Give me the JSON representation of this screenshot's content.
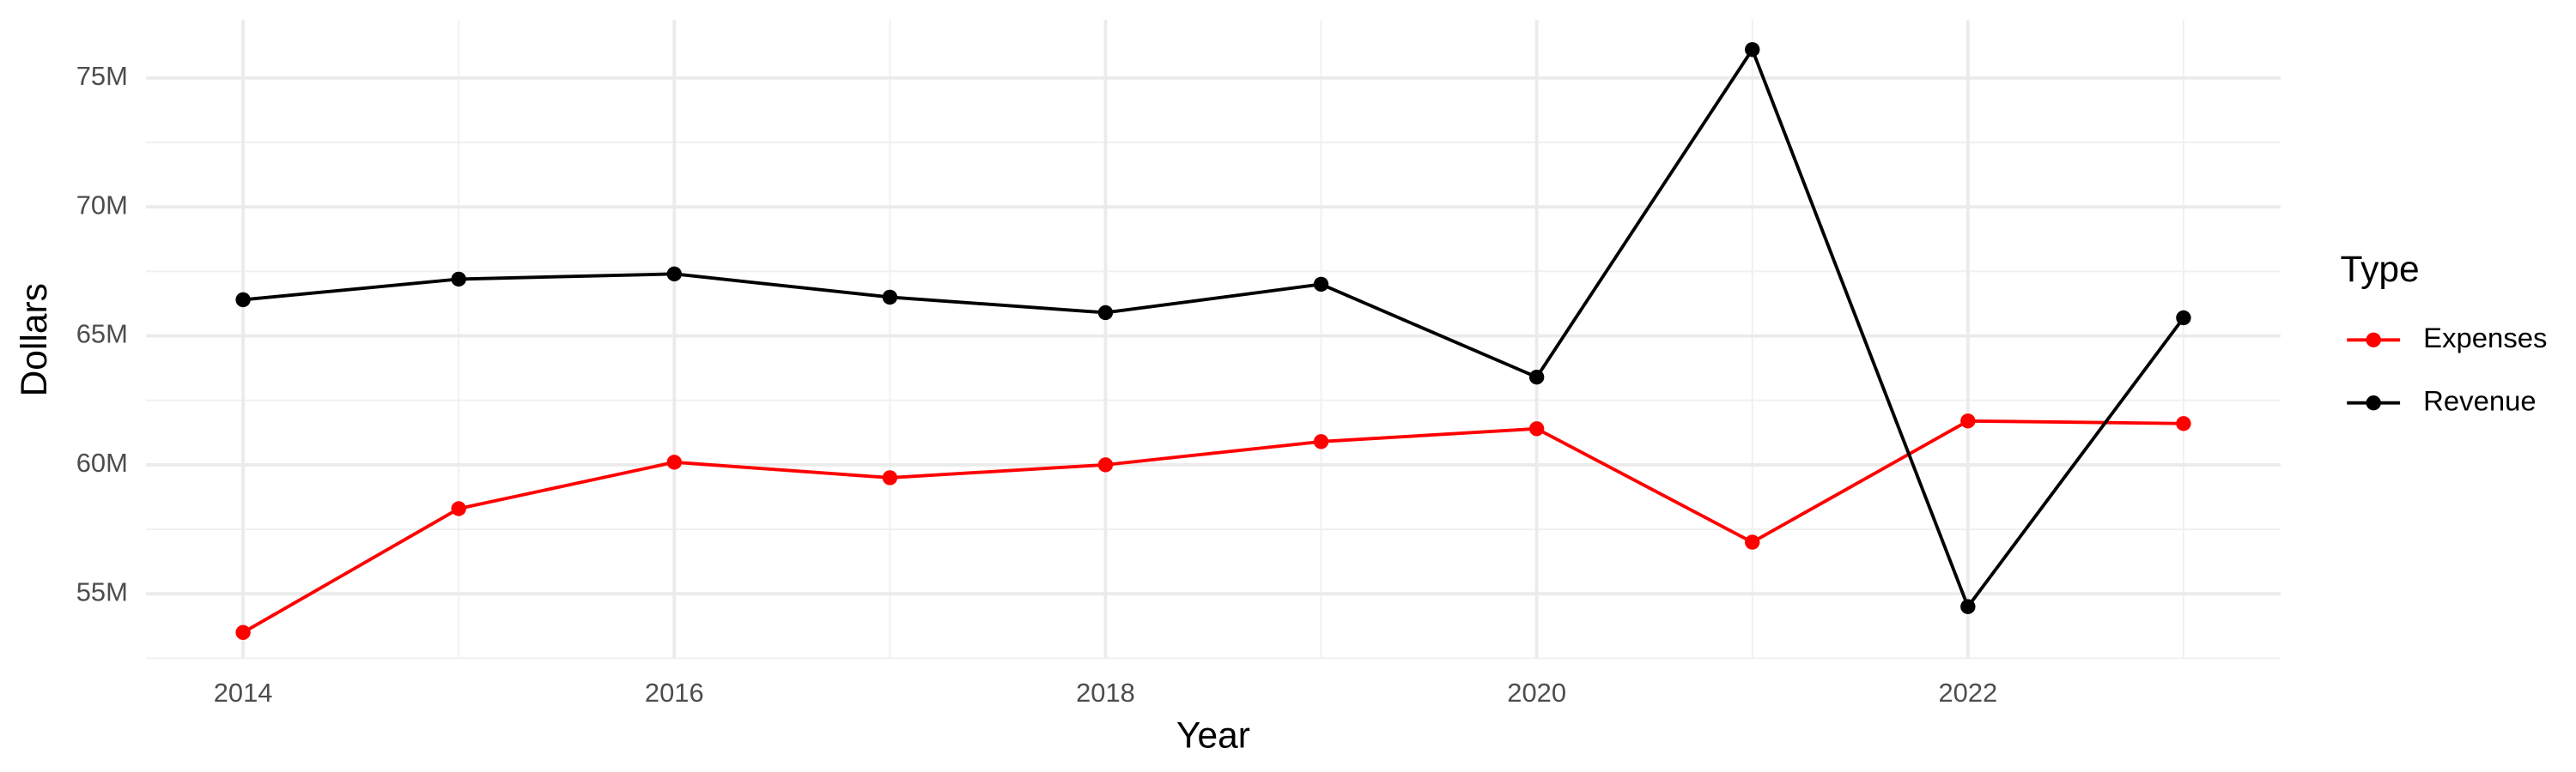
{
  "chart_data": {
    "type": "line",
    "x_label": "Year",
    "y_label": "Dollars",
    "x": [
      2014,
      2015,
      2016,
      2017,
      2018,
      2019,
      2020,
      2021,
      2022,
      2023
    ],
    "series": [
      {
        "name": "Expenses",
        "color": "#ff0000",
        "values": [
          53500000,
          58300000,
          60100000,
          59500000,
          60000000,
          60900000,
          61400000,
          57000000,
          61700000,
          61600000
        ]
      },
      {
        "name": "Revenue",
        "color": "#000000",
        "values": [
          66400000,
          67200000,
          67400000,
          66500000,
          65900000,
          67000000,
          63400000,
          76100000,
          54500000,
          65700000
        ]
      }
    ],
    "legend_title": "Type",
    "legend": "right",
    "xlim": [
      2013.55,
      2023.45
    ],
    "xticks": [
      2014,
      2016,
      2018,
      2020,
      2022
    ],
    "ylim": [
      52500000,
      77250000
    ],
    "yticks": [
      {
        "value": 55000000,
        "label": "55M"
      },
      {
        "value": 60000000,
        "label": "60M"
      },
      {
        "value": 65000000,
        "label": "65M"
      },
      {
        "value": 70000000,
        "label": "70M"
      },
      {
        "value": 75000000,
        "label": "75M"
      }
    ],
    "grid": true
  }
}
